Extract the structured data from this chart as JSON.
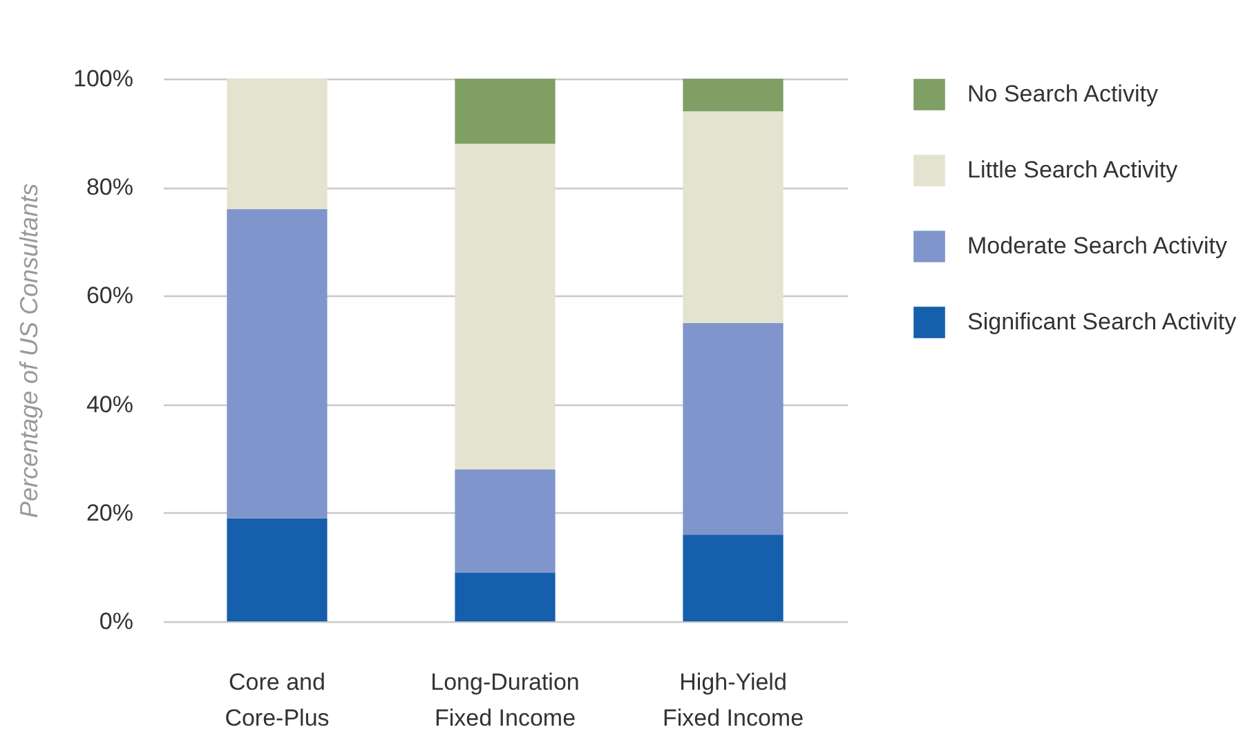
{
  "chart_data": {
    "type": "bar",
    "stacked": true,
    "ylabel": "Percentage of US Consultants",
    "categories": [
      "Core and Core-Plus",
      "Long-Duration Fixed Income",
      "High-Yield Fixed Income"
    ],
    "series": [
      {
        "name": "Significant Search Activity",
        "color": "#155fac",
        "values": [
          19,
          9,
          16
        ]
      },
      {
        "name": "Moderate Search Activity",
        "color": "#7f95cb",
        "values": [
          57,
          19,
          39
        ]
      },
      {
        "name": "Little Search Activity",
        "color": "#e4e3cf",
        "values": [
          24,
          60,
          39
        ]
      },
      {
        "name": "No Search Activity",
        "color": "#7f9f65",
        "values": [
          0,
          12,
          6
        ]
      }
    ],
    "ylim": [
      0,
      100
    ],
    "yticks": [
      {
        "value": 0,
        "label": "0%"
      },
      {
        "value": 20,
        "label": "20%"
      },
      {
        "value": 40,
        "label": "40%"
      },
      {
        "value": 60,
        "label": "60%"
      },
      {
        "value": 80,
        "label": "80%"
      },
      {
        "value": 100,
        "label": "100%"
      }
    ],
    "grid": "y",
    "legend": "right"
  }
}
